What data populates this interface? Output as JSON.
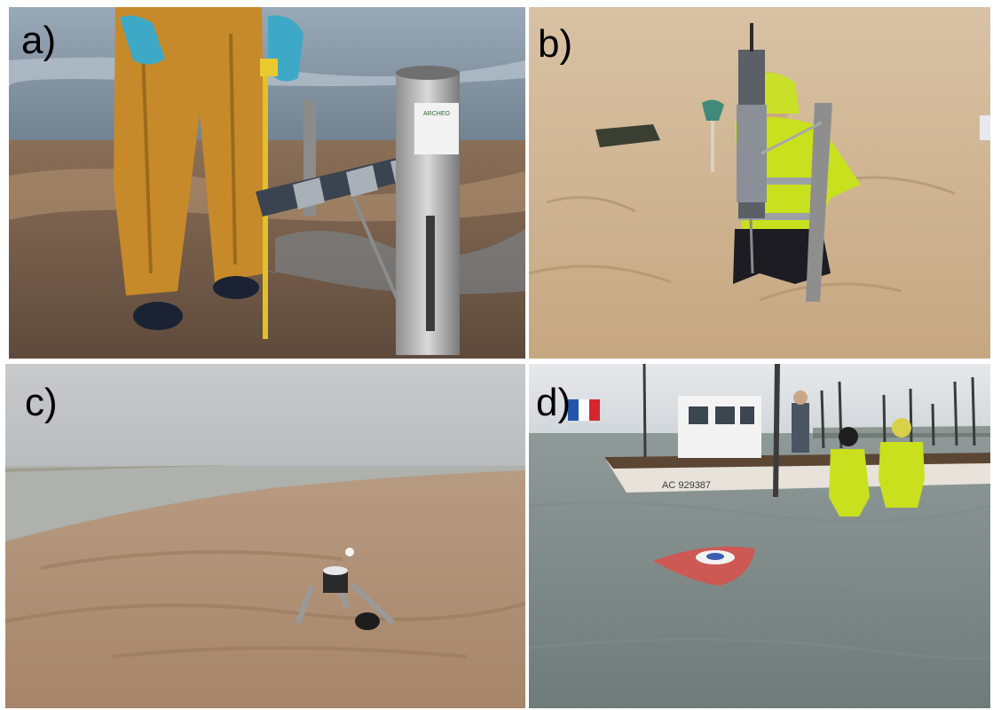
{
  "panels": [
    {
      "label": "a)",
      "scene": "instrument-on-beach-with-tape-measure"
    },
    {
      "label": "b)",
      "scene": "person-installing-sensor-in-sand"
    },
    {
      "label": "c)",
      "scene": "tripod-instrument-on-tidal-flat"
    },
    {
      "label": "d)",
      "scene": "buoy-in-shallow-water-near-boat"
    }
  ],
  "boat": {
    "registration": "AC 929387"
  },
  "instrument_a": {
    "sticker_text": "ARCHEO"
  }
}
